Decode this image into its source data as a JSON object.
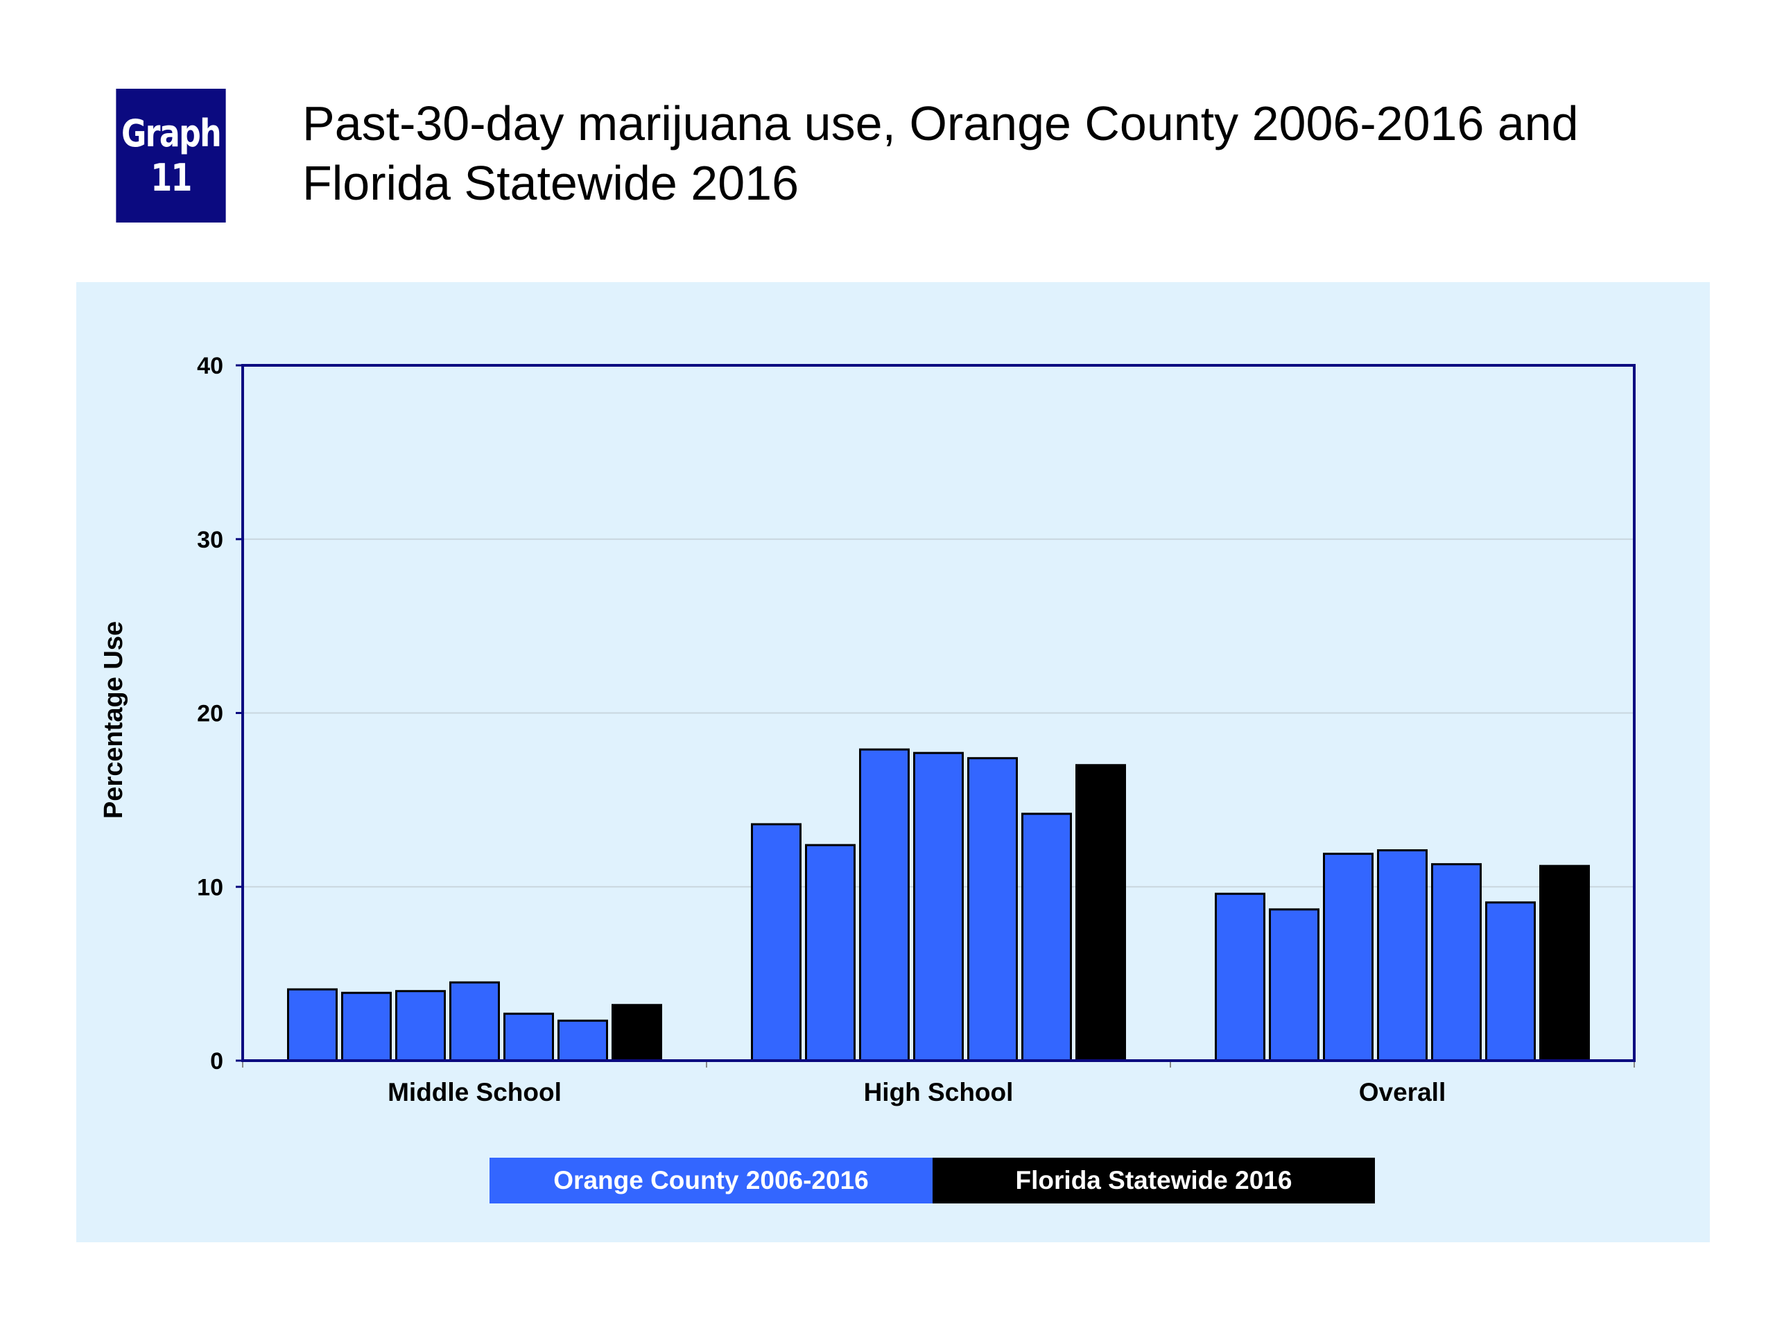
{
  "badge": {
    "line1": "Graph",
    "line2": "11"
  },
  "title": "Past-30-day marijuana use, Orange County 2006-2016 and Florida Statewide 2016",
  "colors": {
    "orange_county": "#3366ff",
    "florida": "#000000",
    "axis": "#0b0a80",
    "badge": "#0b0a80",
    "panel": "#e0f2fd"
  },
  "chart_data": {
    "type": "bar",
    "title": "Past-30-day marijuana use, Orange County 2006-2016 and Florida Statewide 2016",
    "xlabel": "",
    "ylabel": "Percentage Use",
    "ylim": [
      0,
      40
    ],
    "yticks": [
      0,
      10,
      20,
      30,
      40
    ],
    "grid": true,
    "legend_position": "bottom",
    "categories": [
      "Middle School",
      "High School",
      "Overall"
    ],
    "series": [
      {
        "name": "Orange County 2006-2016",
        "color": "#3366ff",
        "groups": [
          [
            4.1,
            3.9,
            4.0,
            4.5,
            2.7,
            2.3
          ],
          [
            13.6,
            12.4,
            17.9,
            17.7,
            17.4,
            14.2
          ],
          [
            9.6,
            8.7,
            11.9,
            12.1,
            11.3,
            9.1
          ]
        ]
      },
      {
        "name": "Florida Statewide 2016",
        "color": "#000000",
        "groups": [
          [
            3.2
          ],
          [
            17.0
          ],
          [
            11.2
          ]
        ]
      }
    ]
  },
  "legend": [
    {
      "label": "Orange County 2006-2016",
      "color": "#3366ff"
    },
    {
      "label": "Florida Statewide 2016",
      "color": "#000000"
    }
  ]
}
